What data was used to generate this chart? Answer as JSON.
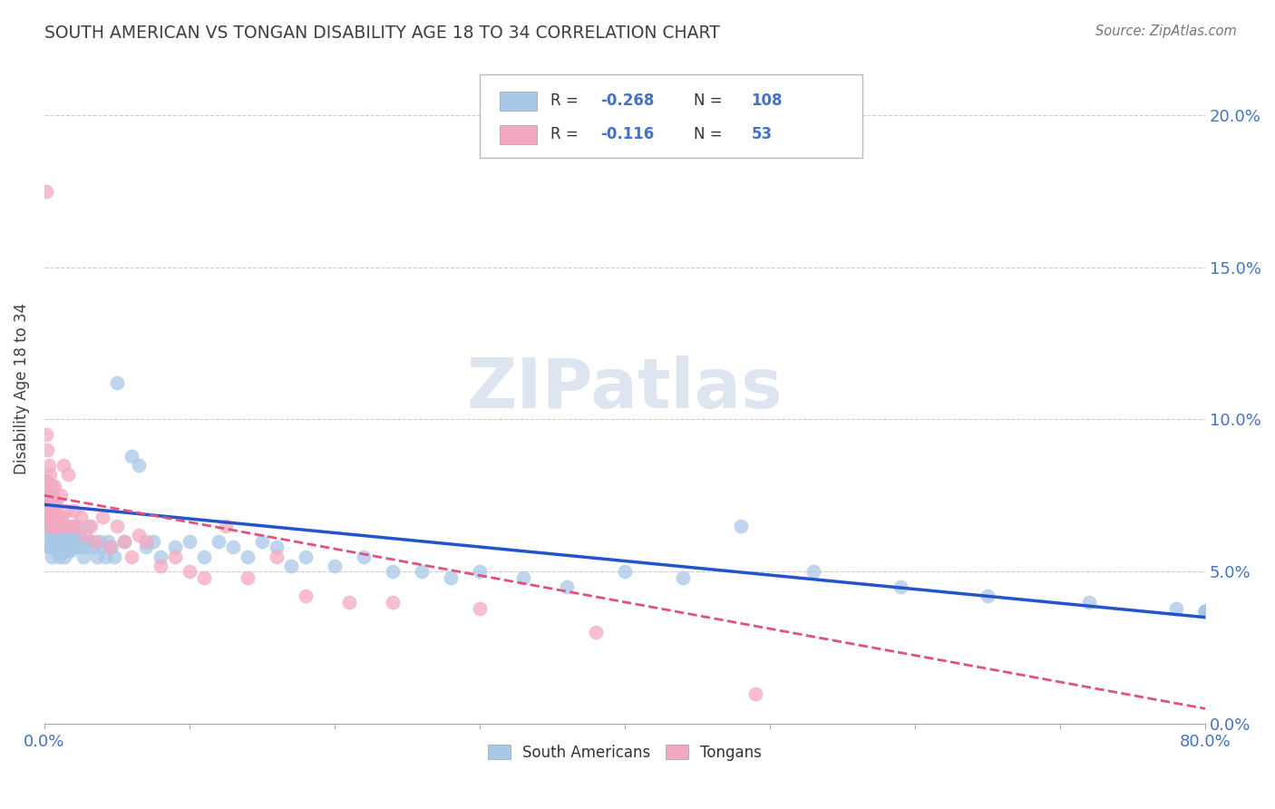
{
  "title": "SOUTH AMERICAN VS TONGAN DISABILITY AGE 18 TO 34 CORRELATION CHART",
  "source": "Source: ZipAtlas.com",
  "ylabel": "Disability Age 18 to 34",
  "xlim": [
    0.0,
    0.8
  ],
  "ylim": [
    0.0,
    0.22
  ],
  "yticks": [
    0.0,
    0.05,
    0.1,
    0.15,
    0.2
  ],
  "ytick_labels": [
    "0.0%",
    "5.0%",
    "10.0%",
    "15.0%",
    "20.0%"
  ],
  "xticks": [
    0.0,
    0.1,
    0.2,
    0.3,
    0.4,
    0.5,
    0.6,
    0.7,
    0.8
  ],
  "xtick_labels": [
    "0.0%",
    "",
    "",
    "",
    "",
    "",
    "",
    "",
    "80.0%"
  ],
  "blue_color": "#a8c8e8",
  "pink_color": "#f4a8c0",
  "blue_line_color": "#2255cc",
  "pink_line_color": "#e05080",
  "axis_label_color": "#4472c4",
  "title_color": "#404040",
  "watermark_color": "#dde5f0",
  "sa_x": [
    0.001,
    0.001,
    0.001,
    0.002,
    0.002,
    0.002,
    0.003,
    0.003,
    0.003,
    0.003,
    0.004,
    0.004,
    0.004,
    0.004,
    0.005,
    0.005,
    0.005,
    0.006,
    0.006,
    0.006,
    0.007,
    0.007,
    0.007,
    0.007,
    0.008,
    0.008,
    0.008,
    0.009,
    0.009,
    0.009,
    0.01,
    0.01,
    0.01,
    0.011,
    0.011,
    0.012,
    0.012,
    0.013,
    0.013,
    0.014,
    0.014,
    0.015,
    0.015,
    0.016,
    0.016,
    0.017,
    0.018,
    0.018,
    0.019,
    0.02,
    0.02,
    0.021,
    0.022,
    0.023,
    0.024,
    0.025,
    0.026,
    0.027,
    0.028,
    0.03,
    0.03,
    0.032,
    0.034,
    0.036,
    0.038,
    0.04,
    0.042,
    0.044,
    0.046,
    0.048,
    0.05,
    0.055,
    0.06,
    0.065,
    0.07,
    0.075,
    0.08,
    0.09,
    0.1,
    0.11,
    0.12,
    0.13,
    0.14,
    0.15,
    0.16,
    0.17,
    0.18,
    0.2,
    0.22,
    0.24,
    0.26,
    0.28,
    0.3,
    0.33,
    0.36,
    0.4,
    0.44,
    0.48,
    0.53,
    0.59,
    0.65,
    0.72,
    0.78,
    0.8,
    0.8,
    0.8,
    0.8,
    0.8
  ],
  "sa_y": [
    0.075,
    0.08,
    0.068,
    0.072,
    0.065,
    0.058,
    0.07,
    0.075,
    0.063,
    0.068,
    0.065,
    0.06,
    0.072,
    0.058,
    0.068,
    0.062,
    0.055,
    0.07,
    0.065,
    0.058,
    0.068,
    0.063,
    0.058,
    0.072,
    0.06,
    0.065,
    0.058,
    0.062,
    0.057,
    0.068,
    0.065,
    0.06,
    0.055,
    0.062,
    0.058,
    0.065,
    0.06,
    0.062,
    0.057,
    0.06,
    0.055,
    0.065,
    0.058,
    0.062,
    0.057,
    0.06,
    0.062,
    0.057,
    0.06,
    0.065,
    0.058,
    0.062,
    0.06,
    0.058,
    0.062,
    0.06,
    0.058,
    0.055,
    0.06,
    0.065,
    0.058,
    0.06,
    0.058,
    0.055,
    0.06,
    0.058,
    0.055,
    0.06,
    0.058,
    0.055,
    0.112,
    0.06,
    0.088,
    0.085,
    0.058,
    0.06,
    0.055,
    0.058,
    0.06,
    0.055,
    0.06,
    0.058,
    0.055,
    0.06,
    0.058,
    0.052,
    0.055,
    0.052,
    0.055,
    0.05,
    0.05,
    0.048,
    0.05,
    0.048,
    0.045,
    0.05,
    0.048,
    0.065,
    0.05,
    0.045,
    0.042,
    0.04,
    0.038,
    0.037,
    0.037,
    0.037,
    0.037,
    0.037
  ],
  "tong_x": [
    0.001,
    0.001,
    0.001,
    0.002,
    0.002,
    0.002,
    0.003,
    0.003,
    0.004,
    0.004,
    0.004,
    0.005,
    0.005,
    0.006,
    0.006,
    0.007,
    0.007,
    0.008,
    0.009,
    0.01,
    0.011,
    0.012,
    0.013,
    0.014,
    0.015,
    0.016,
    0.018,
    0.02,
    0.022,
    0.025,
    0.028,
    0.032,
    0.035,
    0.04,
    0.045,
    0.05,
    0.055,
    0.06,
    0.065,
    0.07,
    0.08,
    0.09,
    0.1,
    0.11,
    0.125,
    0.14,
    0.16,
    0.18,
    0.21,
    0.24,
    0.3,
    0.38,
    0.49
  ],
  "tong_y": [
    0.175,
    0.095,
    0.08,
    0.09,
    0.075,
    0.068,
    0.085,
    0.072,
    0.082,
    0.07,
    0.065,
    0.078,
    0.068,
    0.075,
    0.065,
    0.078,
    0.068,
    0.072,
    0.065,
    0.068,
    0.075,
    0.068,
    0.085,
    0.065,
    0.07,
    0.082,
    0.065,
    0.07,
    0.065,
    0.068,
    0.062,
    0.065,
    0.06,
    0.068,
    0.058,
    0.065,
    0.06,
    0.055,
    0.062,
    0.06,
    0.052,
    0.055,
    0.05,
    0.048,
    0.065,
    0.048,
    0.055,
    0.042,
    0.04,
    0.04,
    0.038,
    0.03,
    0.01
  ]
}
